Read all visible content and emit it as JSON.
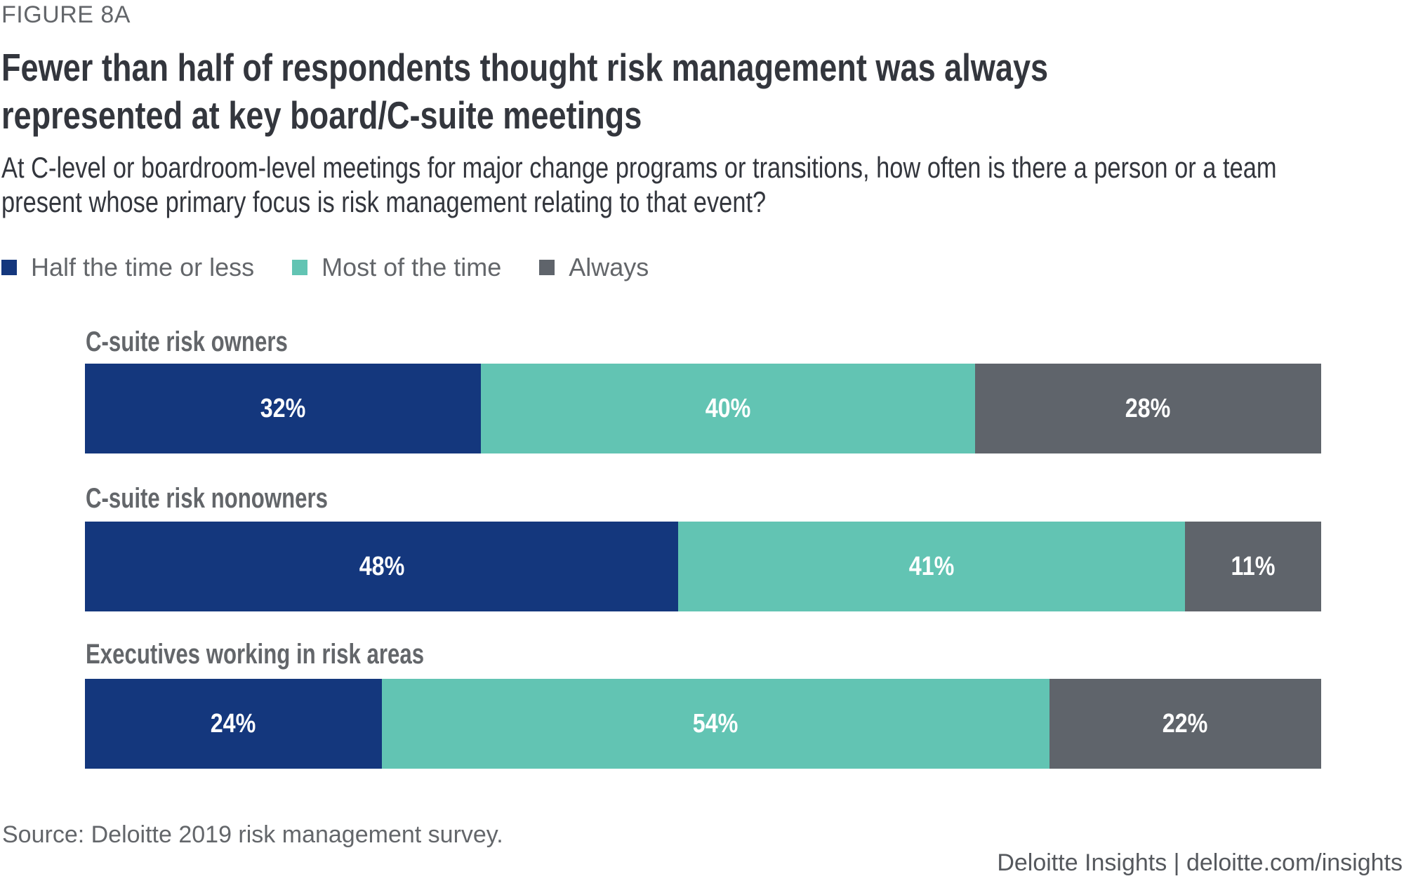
{
  "figure_label": "FIGURE 8A",
  "title": "Fewer than half of respondents thought risk management was always represented at key board/C-suite meetings",
  "subtitle": "At C-level or boardroom-level meetings for major change programs or transitions, how often is there a person or a team present whose primary focus is risk management relating to that event?",
  "source": "Source: Deloitte 2019 risk management survey.",
  "footer": "Deloitte Insights | deloitte.com/insights",
  "chart_data": {
    "type": "bar",
    "orientation": "horizontal",
    "stacked": true,
    "title": "Fewer than half of respondents thought risk management was always represented at key board/C-suite meetings",
    "xlabel": "",
    "ylabel": "",
    "xlim": [
      0,
      100
    ],
    "grid": false,
    "legend_position": "top-left",
    "categories": [
      "C-suite risk owners",
      "C-suite risk nonowners",
      "Executives working in risk areas"
    ],
    "series": [
      {
        "name": "Half the time or less",
        "color": "#14377d",
        "values": [
          32,
          48,
          24
        ]
      },
      {
        "name": "Most of the time",
        "color": "#62c4b3",
        "values": [
          40,
          41,
          54
        ]
      },
      {
        "name": "Always",
        "color": "#5f646b",
        "values": [
          28,
          11,
          22
        ]
      }
    ],
    "value_suffix": "%"
  }
}
